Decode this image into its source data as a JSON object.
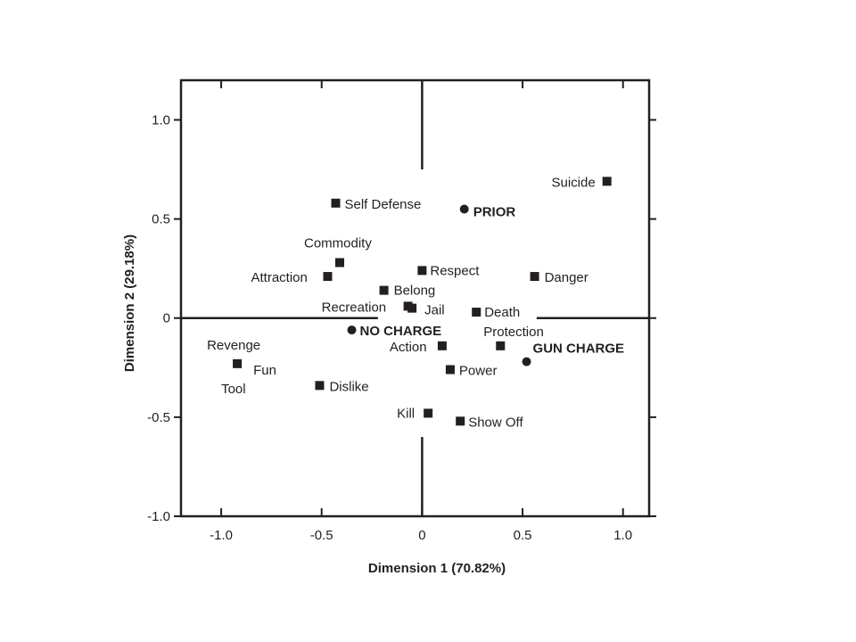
{
  "chart_data": {
    "type": "scatter",
    "xlabel": "Dimension 1 (70.82%)",
    "ylabel": "Dimension 2 (29.18%)",
    "xlim": [
      -1.2,
      1.13
    ],
    "ylim": [
      -1.0,
      1.2
    ],
    "x_ticks": [
      {
        "value": -1.0,
        "label": "-1.0"
      },
      {
        "value": -0.5,
        "label": "-0.5"
      },
      {
        "value": 0.0,
        "label": "0"
      },
      {
        "value": 0.5,
        "label": "0.5"
      },
      {
        "value": 1.0,
        "label": "1.0"
      }
    ],
    "y_ticks": [
      {
        "value": 1.0,
        "label": "1.0"
      },
      {
        "value": 0.5,
        "label": "0.5"
      },
      {
        "value": 0.0,
        "label": "0"
      },
      {
        "value": -0.5,
        "label": "-0.5"
      },
      {
        "value": -1.0,
        "label": "-1.0"
      }
    ],
    "grid": false,
    "reference_lines": {
      "x": 0,
      "y": 0
    },
    "series": [
      {
        "marker": "square",
        "points": [
          {
            "label": "Suicide",
            "x": 0.92,
            "y": 0.69
          },
          {
            "label": "Self Defense",
            "x": -0.43,
            "y": 0.58
          },
          {
            "label": "Commodity",
            "x": -0.41,
            "y": 0.28
          },
          {
            "label": "Attraction",
            "x": -0.47,
            "y": 0.21
          },
          {
            "label": "Respect",
            "x": 0.0,
            "y": 0.24
          },
          {
            "label": "Danger",
            "x": 0.56,
            "y": 0.21
          },
          {
            "label": "Belong",
            "x": -0.19,
            "y": 0.14
          },
          {
            "label": "Recreation",
            "x": -0.07,
            "y": 0.06
          },
          {
            "label": "Jail",
            "x": -0.05,
            "y": 0.05
          },
          {
            "label": "Death",
            "x": 0.27,
            "y": 0.03
          },
          {
            "label": "Revenge",
            "x": -0.92,
            "y": -0.23
          },
          {
            "label": "Fun",
            "x": -0.92,
            "y": -0.23
          },
          {
            "label": "Tool",
            "x": -0.92,
            "y": -0.23
          },
          {
            "label": "Action",
            "x": 0.1,
            "y": -0.14
          },
          {
            "label": "Protection",
            "x": 0.39,
            "y": -0.14
          },
          {
            "label": "Power",
            "x": 0.14,
            "y": -0.26
          },
          {
            "label": "Dislike",
            "x": -0.51,
            "y": -0.34
          },
          {
            "label": "Kill",
            "x": 0.03,
            "y": -0.48
          },
          {
            "label": "Show Off",
            "x": 0.19,
            "y": -0.52
          }
        ]
      },
      {
        "marker": "circle",
        "points": [
          {
            "label": "PRIOR",
            "x": 0.21,
            "y": 0.55
          },
          {
            "label": "NO CHARGE",
            "x": -0.35,
            "y": -0.06
          },
          {
            "label": "GUN CHARGE",
            "x": 0.52,
            "y": -0.22
          }
        ]
      }
    ]
  }
}
